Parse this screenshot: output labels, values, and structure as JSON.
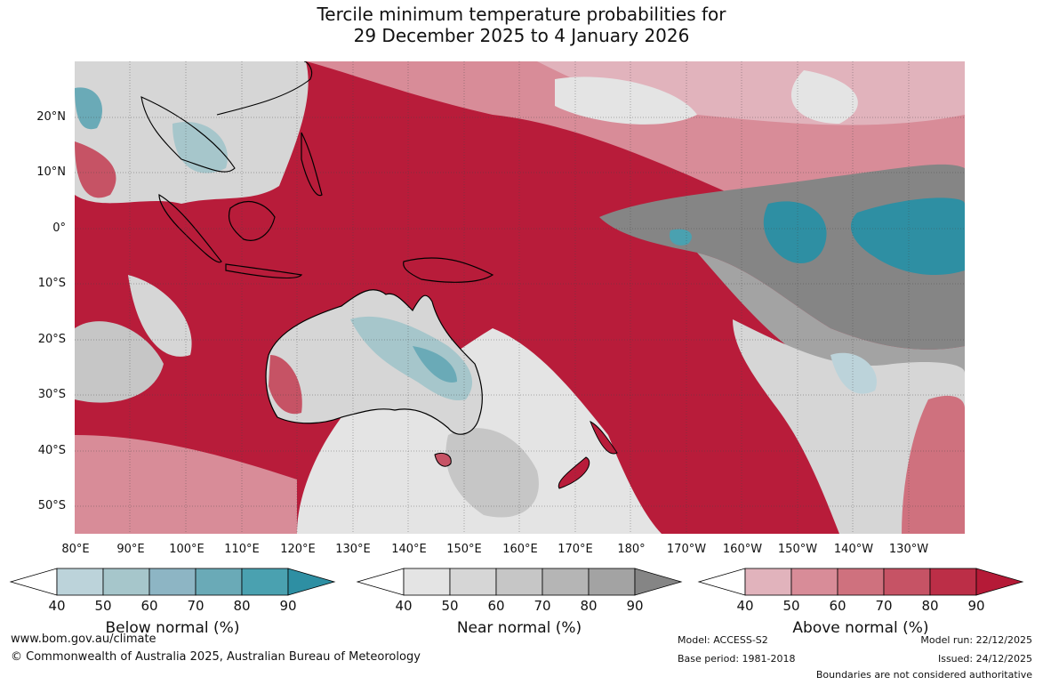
{
  "title": {
    "line1": "Tercile minimum temperature probabilities for",
    "line2": "29 December 2025 to 4 January 2026"
  },
  "map": {
    "lat_labels": [
      "20°N",
      "10°N",
      "0°",
      "10°S",
      "20°S",
      "30°S",
      "40°S",
      "50°S"
    ],
    "lon_labels": [
      "80°E",
      "90°E",
      "100°E",
      "110°E",
      "120°E",
      "130°E",
      "140°E",
      "150°E",
      "160°E",
      "170°E",
      "180°",
      "170°W",
      "160°W",
      "150°W",
      "140°W",
      "130°W"
    ]
  },
  "legends": {
    "below": {
      "title": "Below normal (%)",
      "ticks": [
        "40",
        "50",
        "60",
        "70",
        "80",
        "90"
      ],
      "colors": [
        "#bcd3da",
        "#a6c6cb",
        "#8db5c4",
        "#6aaab7",
        "#4aa1b0",
        "#2e8fa3"
      ]
    },
    "near": {
      "title": "Near normal (%)",
      "ticks": [
        "40",
        "50",
        "60",
        "70",
        "80",
        "90"
      ],
      "colors": [
        "#e4e4e4",
        "#d6d6d6",
        "#c6c6c6",
        "#b5b5b5",
        "#a3a3a3",
        "#858585"
      ]
    },
    "above": {
      "title": "Above normal (%)",
      "ticks": [
        "40",
        "50",
        "60",
        "70",
        "80",
        "90"
      ],
      "colors": [
        "#e1b3bc",
        "#d88c98",
        "#cf717e",
        "#c65365",
        "#bc2e47",
        "#b51a37"
      ]
    }
  },
  "footer": {
    "website": "www.bom.gov.au/climate",
    "copyright": "© Commonwealth of Australia 2025, Australian Bureau of Meteorology",
    "model": "Model: ACCESS-S2",
    "base_period": "Base period: 1981-2018",
    "model_run": "Model run: 22/12/2025",
    "issued": "Issued: 24/12/2025",
    "disclaimer": "Boundaries are not considered authoritative"
  }
}
